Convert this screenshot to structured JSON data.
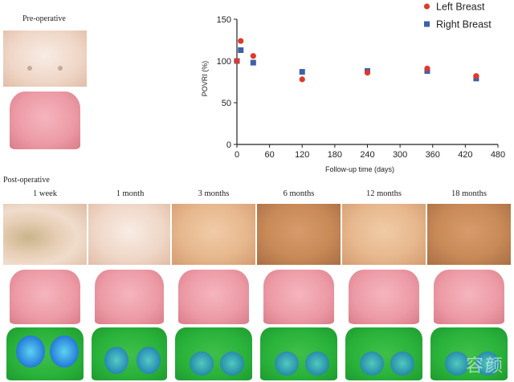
{
  "labels": {
    "pre_operative": "Pre-operative",
    "post_operative": "Post-operative",
    "columns": [
      "1 week",
      "1 month",
      "3 months",
      "6 months",
      "12 months",
      "18 months"
    ]
  },
  "watermark": "容颜",
  "chart_data": {
    "type": "scatter",
    "title": "",
    "xlabel": "Follow-up time (days)",
    "ylabel": "POVRI (%)",
    "xlim": [
      0,
      480
    ],
    "ylim": [
      0,
      150
    ],
    "xticks": [
      0,
      60,
      120,
      180,
      240,
      300,
      360,
      420,
      480
    ],
    "yticks": [
      0,
      50,
      100,
      150
    ],
    "grid": false,
    "legend_position": "top-right",
    "series": [
      {
        "name": "Left Breast",
        "marker": "circle",
        "color": "#e0382b",
        "x": [
          0,
          7,
          30,
          120,
          240,
          350,
          440
        ],
        "y": [
          100,
          124,
          106,
          78,
          86,
          91,
          82
        ]
      },
      {
        "name": "Right Breast",
        "marker": "square",
        "color": "#3f5fa8",
        "x": [
          0,
          7,
          30,
          120,
          240,
          350,
          440
        ],
        "y": [
          100,
          113,
          98,
          87,
          88,
          88,
          79
        ]
      }
    ]
  }
}
